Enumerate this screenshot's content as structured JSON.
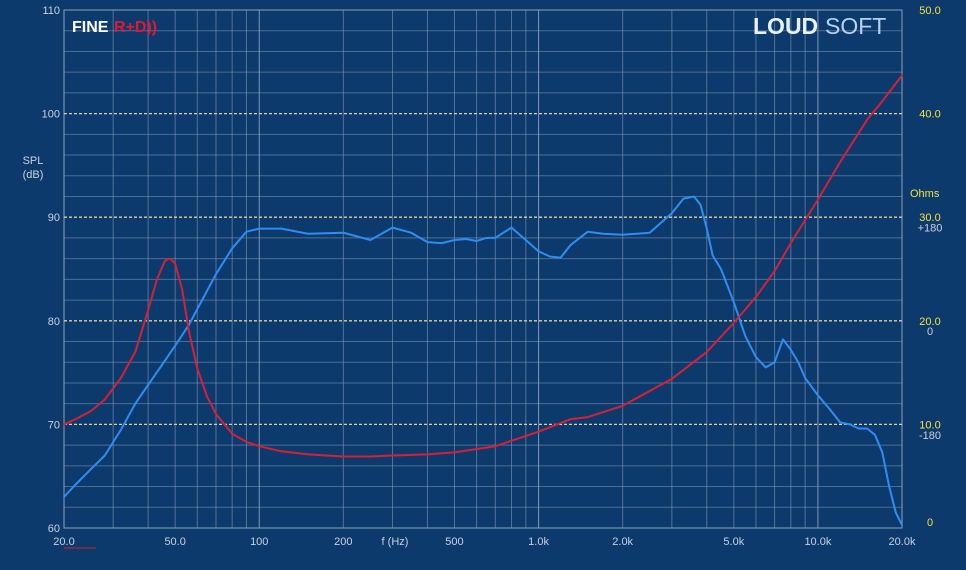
{
  "brand": {
    "left_a": "FINE",
    "left_b": "R+D))",
    "right_a": "LOUD",
    "right_b": "SOFT"
  },
  "colors": {
    "background": "#0d3a6d",
    "spl": "#2f8df2",
    "impedance": "#d81f35",
    "right_axis": "#f5e23a",
    "grid": "#8ea0b8",
    "major_grid": "#d9d2a0"
  },
  "chart_data": {
    "type": "line",
    "xscale": "log",
    "xlim": [
      20,
      20000
    ],
    "ylim": [
      60,
      110
    ],
    "y2lim": [
      0,
      50
    ],
    "xlabel": "f (Hz)",
    "ylabel_line1": "SPL",
    "ylabel_line2": "(dB)",
    "y2label": "Ohms",
    "phase_label": "+180",
    "x_ticks": [
      {
        "value": 20,
        "label": "20.0"
      },
      {
        "value": 50,
        "label": "50.0"
      },
      {
        "value": 100,
        "label": "100"
      },
      {
        "value": 200,
        "label": "200"
      },
      {
        "value": 500,
        "label": "500"
      },
      {
        "value": 1000,
        "label": "1.0k"
      },
      {
        "value": 2000,
        "label": "2.0k"
      },
      {
        "value": 5000,
        "label": "5.0k"
      },
      {
        "value": 10000,
        "label": "10.0k"
      },
      {
        "value": 20000,
        "label": "20.0k"
      }
    ],
    "y_ticks": [
      {
        "value": 60,
        "label": "60"
      },
      {
        "value": 70,
        "label": "70"
      },
      {
        "value": 80,
        "label": "80"
      },
      {
        "value": 90,
        "label": "90"
      },
      {
        "value": 100,
        "label": "100"
      },
      {
        "value": 110,
        "label": "110"
      }
    ],
    "y2_ticks": [
      {
        "value": 0,
        "label": "0"
      },
      {
        "value": 10,
        "label": "10.0"
      },
      {
        "value": 20,
        "label": "20.0"
      },
      {
        "value": 30,
        "label": "30.0"
      },
      {
        "value": 40,
        "label": "40.0"
      },
      {
        "value": 50,
        "label": "50.0"
      }
    ],
    "phase_ticks": [
      {
        "value": 29,
        "label": "+180"
      },
      {
        "value": 19,
        "label": "0"
      },
      {
        "value": 9,
        "label": "-180"
      }
    ],
    "series": [
      {
        "id": "spl",
        "axis": "left",
        "x": [
          20,
          22,
          25,
          28,
          32,
          36,
          40,
          45,
          50,
          56,
          63,
          70,
          80,
          90,
          100,
          120,
          150,
          200,
          250,
          300,
          350,
          400,
          450,
          500,
          550,
          600,
          650,
          700,
          800,
          900,
          1000,
          1100,
          1200,
          1300,
          1500,
          1700,
          2000,
          2500,
          3000,
          3300,
          3600,
          3800,
          4000,
          4200,
          4500,
          5000,
          5500,
          6000,
          6500,
          7000,
          7500,
          8000,
          8500,
          9000,
          10000,
          11000,
          12000,
          13000,
          14000,
          15000,
          16000,
          17000,
          18000,
          19000,
          20000
        ],
        "y": [
          63,
          64.2,
          65.7,
          67,
          69.5,
          72,
          73.8,
          75.8,
          77.6,
          79.6,
          82.2,
          84.5,
          87,
          88.6,
          88.9,
          88.9,
          88.4,
          88.5,
          87.8,
          89,
          88.5,
          87.6,
          87.5,
          87.8,
          87.9,
          87.7,
          88,
          88,
          89,
          87.8,
          86.7,
          86.2,
          86.1,
          87.3,
          88.6,
          88.4,
          88.3,
          88.5,
          90.4,
          91.8,
          92,
          91.2,
          88.9,
          86.3,
          85,
          81.8,
          78.5,
          76.5,
          75.5,
          76,
          78.2,
          77.2,
          76,
          74.5,
          72.8,
          71.5,
          70.2,
          70,
          69.6,
          69.6,
          69,
          67.3,
          64,
          61.5,
          60.3
        ]
      },
      {
        "id": "impedance",
        "axis": "right",
        "x": [
          20,
          22,
          25,
          28,
          32,
          36,
          40,
          43,
          46,
          48,
          50,
          53,
          56,
          60,
          65,
          70,
          80,
          90,
          100,
          120,
          150,
          200,
          250,
          300,
          400,
          500,
          700,
          1000,
          1300,
          1500,
          2000,
          3000,
          4000,
          5000,
          6000,
          7000,
          8000,
          10000,
          12000,
          15000,
          17000,
          20000
        ],
        "y": [
          10,
          10.5,
          11.3,
          12.4,
          14.5,
          17,
          21,
          24,
          25.8,
          26,
          25.5,
          23,
          19,
          15.4,
          12.7,
          11,
          9.1,
          8.3,
          7.9,
          7.4,
          7.1,
          6.9,
          6.9,
          7.0,
          7.1,
          7.3,
          7.9,
          9.3,
          10.5,
          10.7,
          11.8,
          14.4,
          17,
          19.8,
          22.3,
          24.8,
          27.5,
          31.7,
          35.3,
          39.4,
          41.2,
          43.7
        ]
      }
    ]
  }
}
